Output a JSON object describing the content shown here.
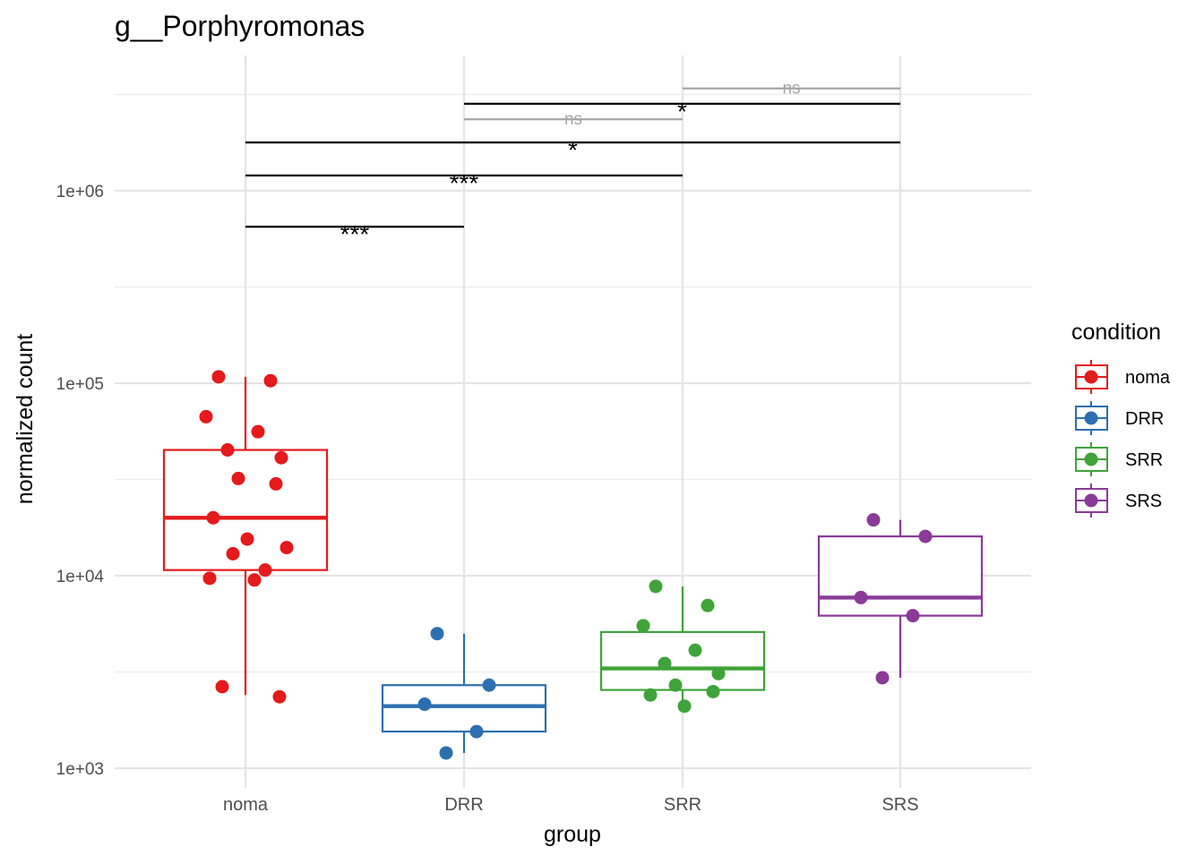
{
  "chart_data": {
    "type": "box",
    "title": "g__Porphyromonas",
    "xlabel": "group",
    "ylabel": "normalized count",
    "y_scale": "log10",
    "ylim": [
      830,
      5000000
    ],
    "grid": true,
    "categories": [
      "noma",
      "DRR",
      "SRR",
      "SRS"
    ],
    "y_ticks": [
      {
        "value": 1000,
        "label": "1e+03"
      },
      {
        "value": 10000,
        "label": "1e+04"
      },
      {
        "value": 100000,
        "label": "1e+05"
      },
      {
        "value": 1000000,
        "label": "1e+06"
      }
    ],
    "legend": {
      "title": "condition",
      "position": "right",
      "items": [
        "noma",
        "DRR",
        "SRR",
        "SRS"
      ]
    },
    "series": [
      {
        "name": "noma",
        "color": "#E41A1C",
        "box": {
          "min": 2400,
          "q1": 10700,
          "median": 20000,
          "q3": 45000,
          "max": 108000
        },
        "points": [
          108000,
          103000,
          67000,
          56000,
          45000,
          41000,
          32000,
          30000,
          20000,
          15500,
          14000,
          13000,
          10700,
          9700,
          9500,
          2650,
          2350
        ]
      },
      {
        "name": "DRR",
        "color": "#2C6FB0",
        "box": {
          "min": 1200,
          "q1": 1550,
          "median": 2100,
          "q3": 2700,
          "max": 5000
        },
        "points": [
          5000,
          2700,
          2150,
          1550,
          1200
        ]
      },
      {
        "name": "SRR",
        "color": "#3FA33A",
        "box": {
          "min": 2100,
          "q1": 2550,
          "median": 3300,
          "q3": 5100,
          "max": 8800
        },
        "points": [
          8800,
          7000,
          5500,
          4100,
          3500,
          3100,
          2700,
          2500,
          2400,
          2100
        ]
      },
      {
        "name": "SRS",
        "color": "#8B3A99",
        "box": {
          "min": 2950,
          "q1": 6200,
          "median": 7700,
          "q3": 16000,
          "max": 19500
        },
        "points": [
          19500,
          16000,
          7700,
          6200,
          2950
        ]
      }
    ],
    "comparisons": [
      {
        "from": "noma",
        "to": "DRR",
        "y": 650000,
        "label": "***"
      },
      {
        "from": "noma",
        "to": "SRR",
        "y": 1200000,
        "label": "***"
      },
      {
        "from": "noma",
        "to": "SRS",
        "y": 1780000,
        "label": "*"
      },
      {
        "from": "DRR",
        "to": "SRR",
        "y": 2350000,
        "label": "ns"
      },
      {
        "from": "DRR",
        "to": "SRS",
        "y": 2830000,
        "label": "*"
      },
      {
        "from": "SRR",
        "to": "SRS",
        "y": 3400000,
        "label": "ns"
      }
    ]
  }
}
